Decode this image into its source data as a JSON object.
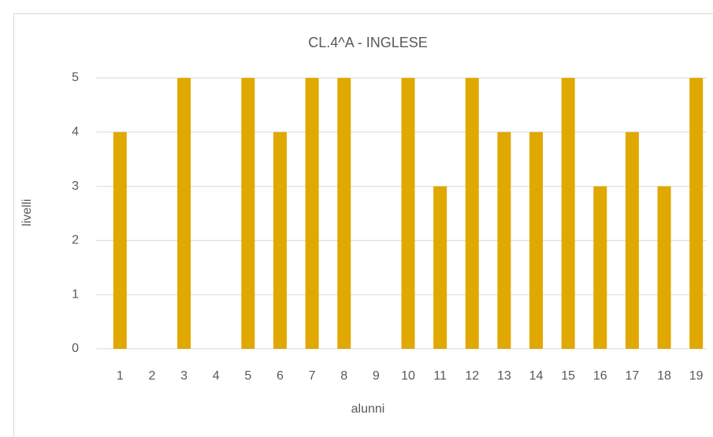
{
  "chart_data": {
    "type": "bar",
    "title": "CL.4^A - INGLESE",
    "x_label": "alunni",
    "y_label": "livelli",
    "categories": [
      "1",
      "2",
      "3",
      "4",
      "5",
      "6",
      "7",
      "8",
      "9",
      "10",
      "11",
      "12",
      "13",
      "14",
      "15",
      "16",
      "17",
      "18",
      "19"
    ],
    "values": [
      4,
      0,
      5,
      0,
      5,
      4,
      5,
      5,
      0,
      5,
      3,
      5,
      4,
      4,
      5,
      3,
      4,
      3,
      5
    ],
    "color": "#e0a800",
    "ylim": [
      0,
      5
    ],
    "yticks": [
      0,
      1,
      2,
      3,
      4,
      5
    ],
    "grid": true
  }
}
